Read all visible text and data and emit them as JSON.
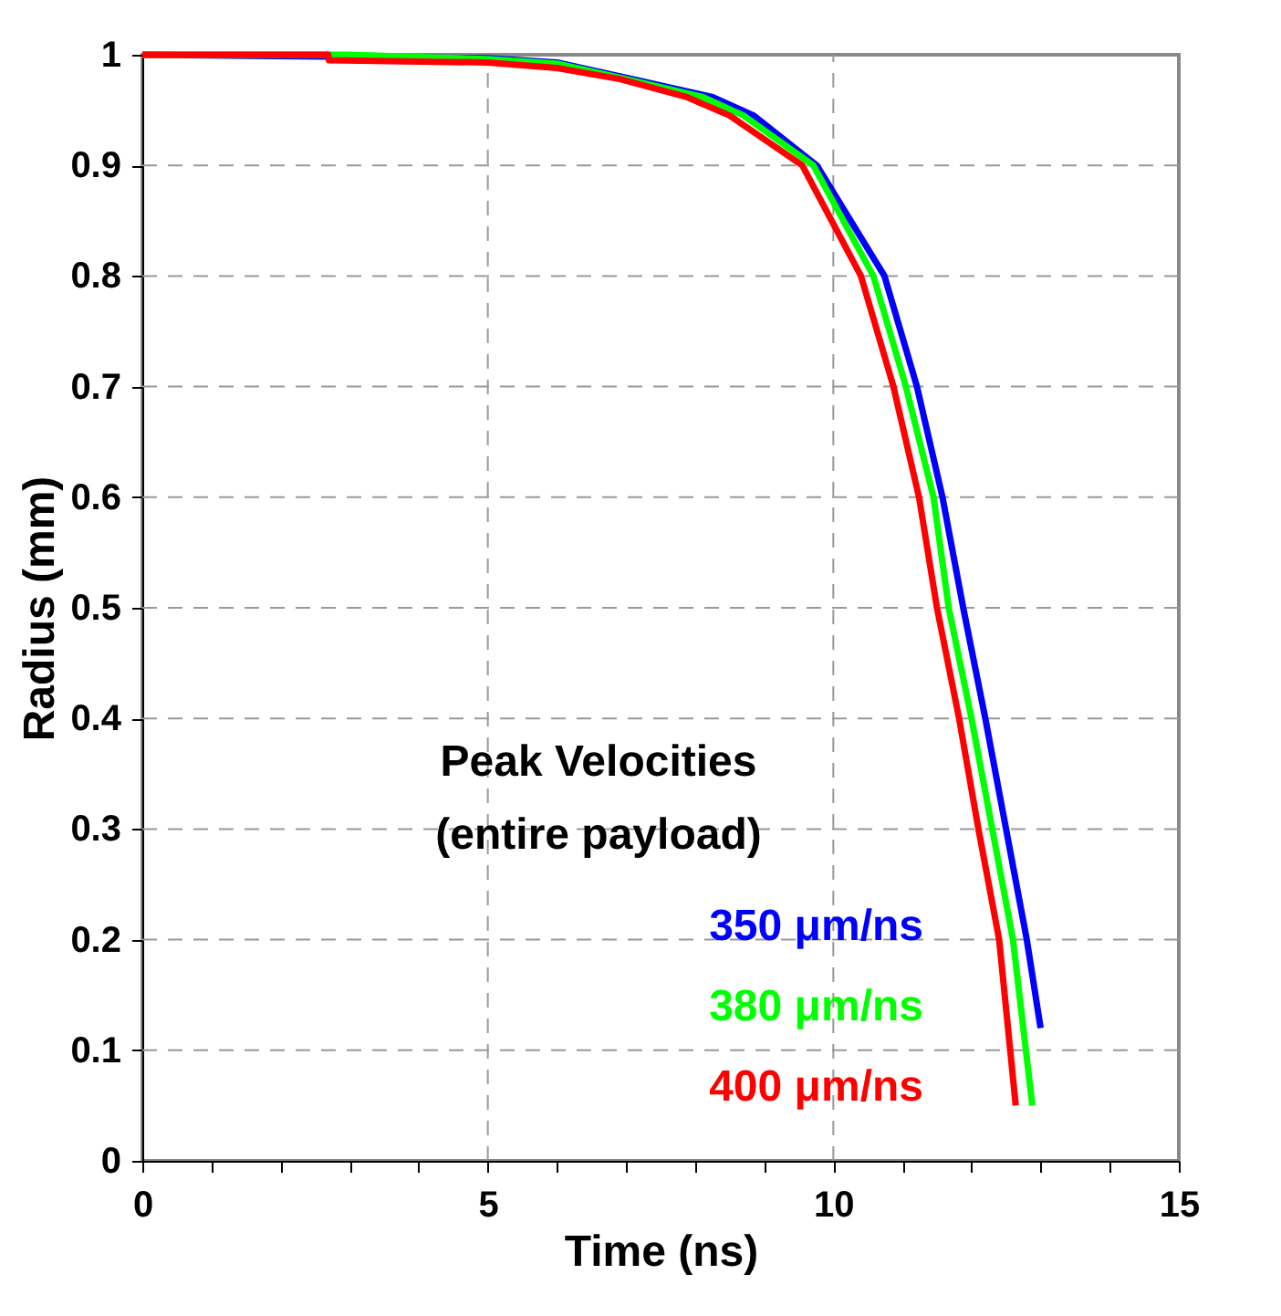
{
  "chart_data": {
    "type": "line",
    "xlabel": "Time (ns)",
    "ylabel": "Radius (mm)",
    "xlim": [
      0,
      15
    ],
    "ylim": [
      0,
      1
    ],
    "xticks": [
      0,
      {
        "value": 1,
        "label": null
      },
      {
        "value": 2,
        "label": null
      },
      {
        "value": 3,
        "label": null
      },
      {
        "value": 4,
        "label": null
      },
      5,
      {
        "value": 6,
        "label": null
      },
      {
        "value": 7,
        "label": null
      },
      {
        "value": 8,
        "label": null
      },
      {
        "value": 9,
        "label": null
      },
      10,
      {
        "value": 11,
        "label": null
      },
      {
        "value": 12,
        "label": null
      },
      {
        "value": 13,
        "label": null
      },
      {
        "value": 14,
        "label": null
      },
      15
    ],
    "yticks": [
      0,
      0.1,
      0.2,
      0.3,
      0.4,
      0.5,
      0.6,
      0.7,
      0.8,
      0.9,
      1
    ],
    "grid": true,
    "legend": "bottom right",
    "legend_title": "Peak Velocities\n(entire payload)",
    "marker": "none",
    "line_style": "solid",
    "series": [
      {
        "name": "350 μm/ns",
        "color": "#0000ff",
        "x": [
          0,
          5,
          6,
          7.09,
          8.24,
          8.85,
          9.76,
          10.74,
          11.21,
          11.58,
          11.88,
          12.2,
          12.5,
          12.8,
          13.0
        ],
        "values": [
          1,
          0.997,
          0.993,
          0.978,
          0.962,
          0.945,
          0.9,
          0.8,
          0.7,
          0.6,
          0.5,
          0.4,
          0.3,
          0.2,
          0.12
        ]
      },
      {
        "name": "380 μm/ns",
        "color": "#00ff00",
        "x": [
          0,
          3,
          5,
          6,
          7.0,
          8.1,
          8.7,
          9.71,
          10.58,
          11.05,
          11.45,
          11.67,
          12.0,
          12.3,
          12.6,
          12.88
        ],
        "values": [
          1,
          1,
          0.996,
          0.992,
          0.978,
          0.962,
          0.945,
          0.9,
          0.8,
          0.7,
          0.6,
          0.5,
          0.4,
          0.3,
          0.2,
          0.05
        ]
      },
      {
        "name": "400 μm/ns",
        "color": "#ff0000",
        "x": [
          0,
          2.69,
          2.7,
          5,
          6,
          6.91,
          7.87,
          8.5,
          9.55,
          10.4,
          10.87,
          11.24,
          11.5,
          11.82,
          12.1,
          12.4,
          12.64
        ],
        "values": [
          1,
          1,
          0.995,
          0.993,
          0.988,
          0.978,
          0.962,
          0.945,
          0.9,
          0.8,
          0.7,
          0.6,
          0.5,
          0.4,
          0.3,
          0.2,
          0.05
        ]
      }
    ]
  }
}
